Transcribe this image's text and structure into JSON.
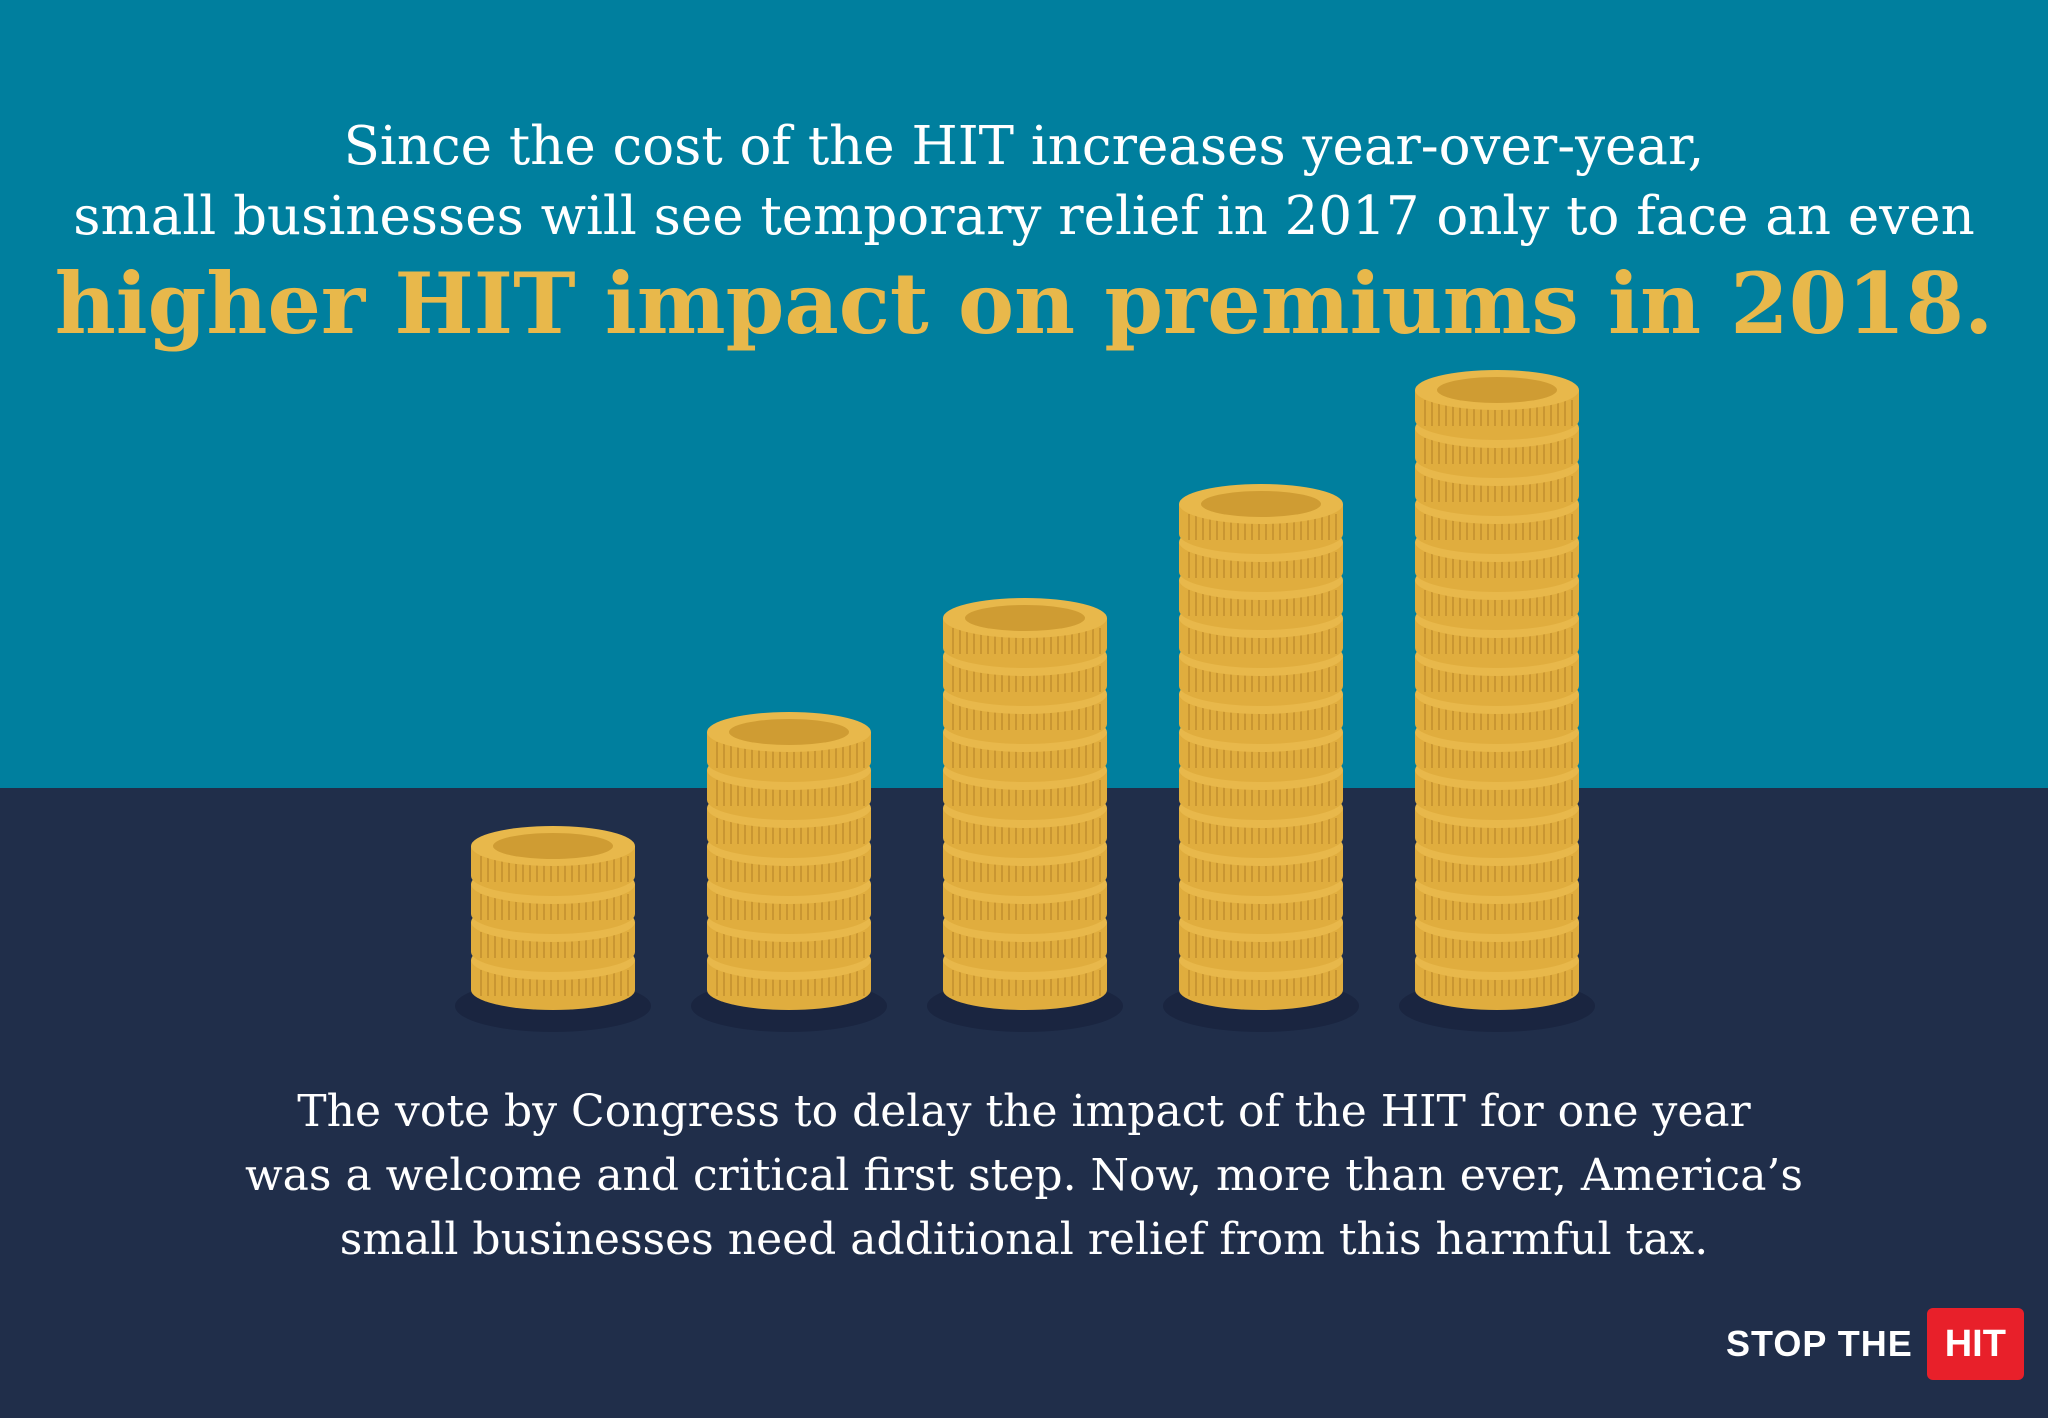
{
  "headline": {
    "line1": "Since the cost of the HIT increases year-over-year,",
    "line2": "small businesses will see temporary relief in 2017 only to face an even",
    "line3": "higher HIT impact on premiums in 2018."
  },
  "coin_stacks": [
    {
      "coins": 4
    },
    {
      "coins": 7
    },
    {
      "coins": 10
    },
    {
      "coins": 13
    },
    {
      "coins": 16
    }
  ],
  "body": {
    "line1": "The vote by Congress to delay the impact of the HIT for one year",
    "line2": "was a welcome and critical first step. Now, more than ever, America’s",
    "line3": "small businesses need additional relief from this harmful tax."
  },
  "logo": {
    "text": "STOP THE",
    "box": "HIT"
  },
  "colors": {
    "top": "#007f9e",
    "bottom": "#202e4a",
    "gold": "#e8b84b",
    "red": "#e8202a"
  }
}
